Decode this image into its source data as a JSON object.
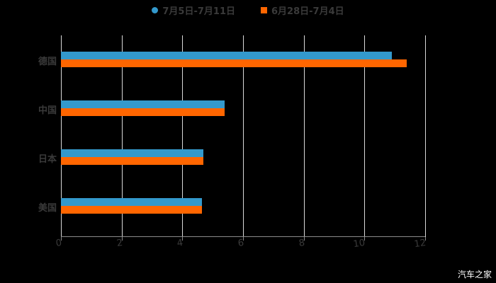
{
  "chart_data": {
    "type": "bar",
    "orientation": "horizontal",
    "title": "",
    "categories": [
      "德国",
      "中国",
      "日本",
      "美国"
    ],
    "series": [
      {
        "name": "7月5日-7月11日",
        "color": "#3399cc",
        "values": [
          10.9,
          5.4,
          4.7,
          4.65
        ]
      },
      {
        "name": "6月28日-7月4日",
        "color": "#ff6600",
        "values": [
          11.4,
          5.4,
          4.7,
          4.65
        ]
      }
    ],
    "xlabel": "",
    "ylabel": "",
    "xlim": [
      0,
      12
    ],
    "xticks": [
      "0",
      "2",
      "4",
      "6",
      "8",
      "10",
      "12"
    ],
    "grid": true,
    "legend_position": "top"
  },
  "legend": {
    "series1": "7月5日-7月11日",
    "series2": "6月28日-7月4日"
  },
  "watermark": "汽车之家"
}
